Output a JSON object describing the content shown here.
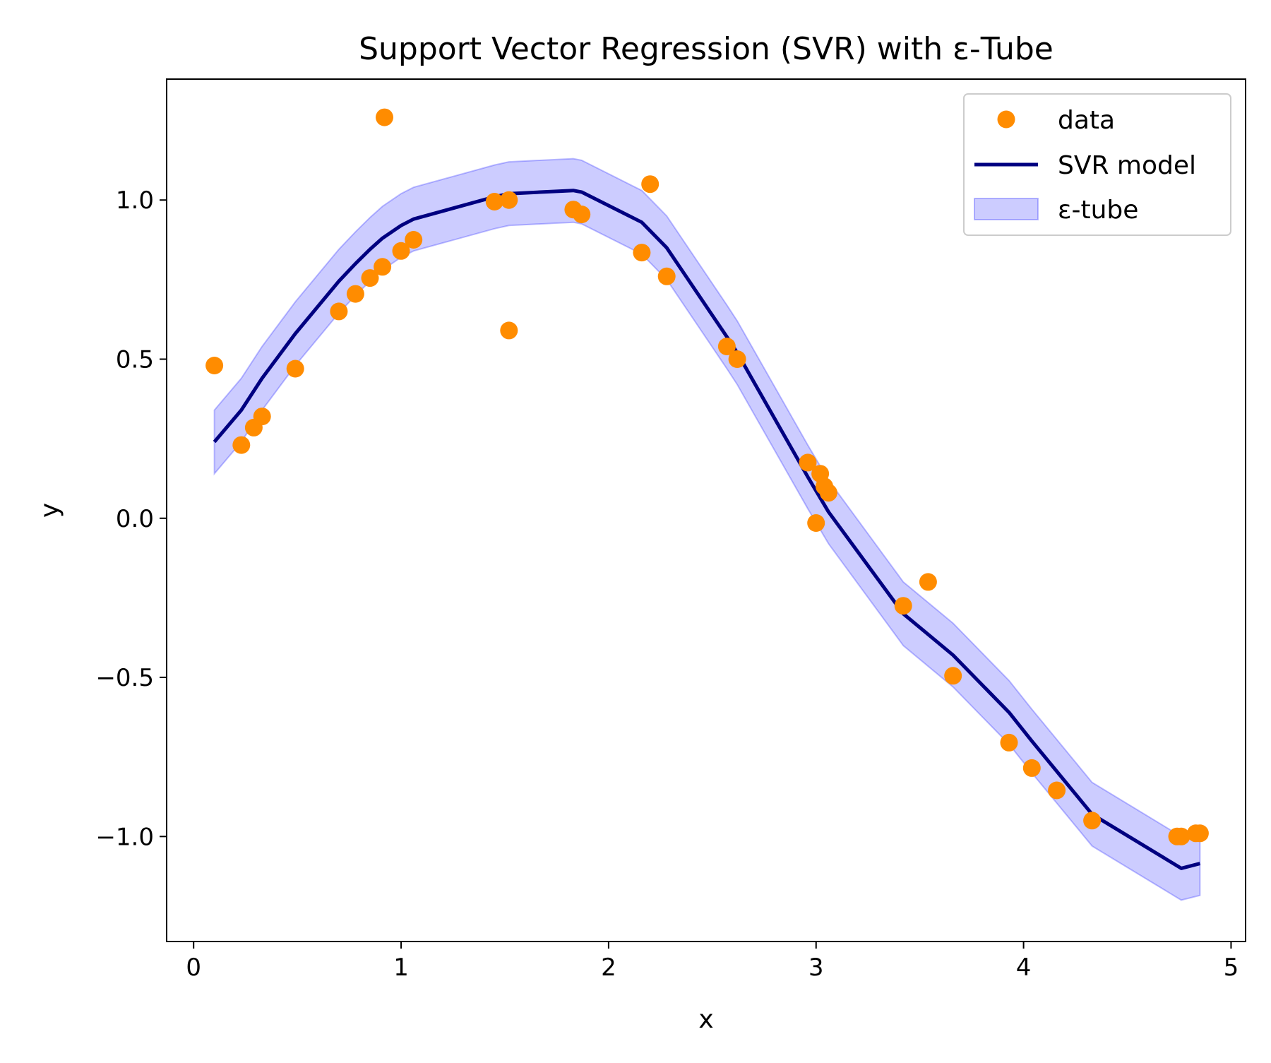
{
  "chart_data": {
    "type": "scatter",
    "title": "Support Vector Regression (SVR) with ε-Tube",
    "xlabel": "x",
    "ylabel": "y",
    "xlim": [
      -0.13,
      5.07
    ],
    "ylim": [
      -1.33,
      1.38
    ],
    "xticks": [
      0,
      1,
      2,
      3,
      4,
      5
    ],
    "xtick_labels": [
      "0",
      "1",
      "2",
      "3",
      "4",
      "5"
    ],
    "yticks": [
      -1.0,
      -0.5,
      0.0,
      0.5,
      1.0
    ],
    "ytick_labels": [
      "−1.0",
      "−0.5",
      "0.0",
      "0.5",
      "1.0"
    ],
    "grid": false,
    "legend_position": "top-right",
    "epsilon": 0.1,
    "colors": {
      "data": "#ff8c00",
      "model": "#000080",
      "tube_fill": "#0000ff",
      "tube_opacity": 0.2
    },
    "series": [
      {
        "name": "data",
        "kind": "scatter",
        "points": [
          [
            0.1,
            0.48
          ],
          [
            0.23,
            0.23
          ],
          [
            0.29,
            0.285
          ],
          [
            0.33,
            0.32
          ],
          [
            0.49,
            0.47
          ],
          [
            0.7,
            0.65
          ],
          [
            0.78,
            0.705
          ],
          [
            0.85,
            0.755
          ],
          [
            0.91,
            0.79
          ],
          [
            0.92,
            1.26
          ],
          [
            1.0,
            0.84
          ],
          [
            1.06,
            0.875
          ],
          [
            1.45,
            0.995
          ],
          [
            1.52,
            1.0
          ],
          [
            1.52,
            0.59
          ],
          [
            1.83,
            0.97
          ],
          [
            1.87,
            0.955
          ],
          [
            2.16,
            0.835
          ],
          [
            2.2,
            1.05
          ],
          [
            2.28,
            0.76
          ],
          [
            2.57,
            0.54
          ],
          [
            2.62,
            0.5
          ],
          [
            2.96,
            0.175
          ],
          [
            3.0,
            -0.015
          ],
          [
            3.02,
            0.14
          ],
          [
            3.04,
            0.1
          ],
          [
            3.06,
            0.08
          ],
          [
            3.42,
            -0.275
          ],
          [
            3.54,
            -0.2
          ],
          [
            3.66,
            -0.495
          ],
          [
            3.93,
            -0.705
          ],
          [
            4.04,
            -0.785
          ],
          [
            4.16,
            -0.855
          ],
          [
            4.33,
            -0.95
          ],
          [
            4.74,
            -1.0
          ],
          [
            4.76,
            -1.0
          ],
          [
            4.83,
            -0.99
          ],
          [
            4.85,
            -0.99
          ]
        ]
      },
      {
        "name": "SVR model",
        "kind": "line",
        "points": [
          [
            0.1,
            0.24
          ],
          [
            0.23,
            0.34
          ],
          [
            0.33,
            0.44
          ],
          [
            0.49,
            0.58
          ],
          [
            0.7,
            0.745
          ],
          [
            0.78,
            0.8
          ],
          [
            0.85,
            0.845
          ],
          [
            0.91,
            0.88
          ],
          [
            1.0,
            0.92
          ],
          [
            1.06,
            0.94
          ],
          [
            1.45,
            1.01
          ],
          [
            1.52,
            1.02
          ],
          [
            1.83,
            1.03
          ],
          [
            1.87,
            1.025
          ],
          [
            2.16,
            0.93
          ],
          [
            2.28,
            0.85
          ],
          [
            2.57,
            0.57
          ],
          [
            2.62,
            0.52
          ],
          [
            2.96,
            0.13
          ],
          [
            3.06,
            0.02
          ],
          [
            3.42,
            -0.3
          ],
          [
            3.66,
            -0.43
          ],
          [
            3.93,
            -0.61
          ],
          [
            4.04,
            -0.7
          ],
          [
            4.33,
            -0.93
          ],
          [
            4.76,
            -1.1
          ],
          [
            4.85,
            -1.085
          ]
        ]
      },
      {
        "name": "ε-tube",
        "kind": "band",
        "offset": 0.1
      }
    ]
  }
}
